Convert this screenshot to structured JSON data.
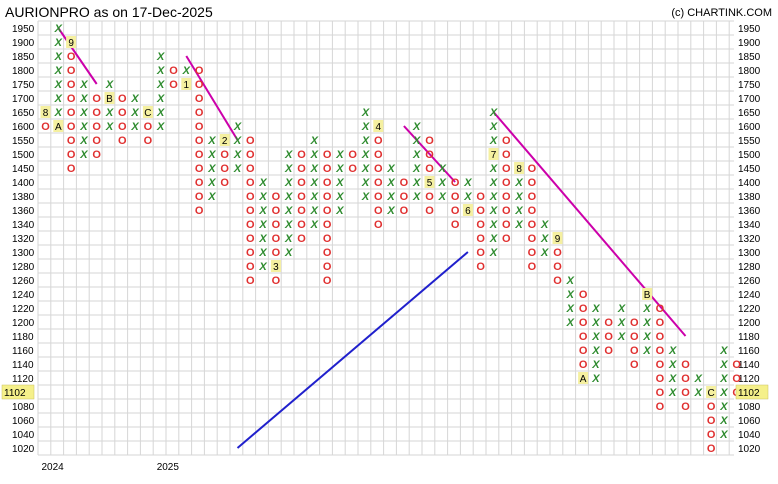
{
  "header": {
    "title": "AURIONPRO as on 17-Dec-2025",
    "credit": "(c) CHARTINK.COM"
  },
  "current_price": "1102",
  "chart_data": {
    "type": "point-and-figure",
    "title": "AURIONPRO as on 17-Dec-2025",
    "y_levels": [
      1020,
      1040,
      1060,
      1080,
      1100,
      1120,
      1140,
      1160,
      1180,
      1200,
      1220,
      1240,
      1260,
      1280,
      1300,
      1320,
      1340,
      1360,
      1380,
      1400,
      1450,
      1500,
      1550,
      1600,
      1650,
      1700,
      1750,
      1800,
      1850,
      1900,
      1950
    ],
    "y_tick_labels": [
      "1950",
      "1900",
      "1850",
      "1800",
      "1750",
      "1700",
      "1650",
      "1600",
      "1550",
      "1500",
      "1450",
      "1400",
      "1380",
      "1360",
      "1340",
      "1320",
      "1300",
      "1280",
      "1260",
      "1240",
      "1220",
      "1200",
      "1180",
      "1160",
      "1140",
      "1120",
      "1100",
      "1080",
      "1060",
      "1040",
      "1020"
    ],
    "x_axis_labels": [
      {
        "col": 0,
        "label": "2024"
      },
      {
        "col": 9,
        "label": "2025"
      }
    ],
    "columns": [
      {
        "type": "O",
        "from": 1600,
        "to": 1650,
        "marks": [
          {
            "level": 1650,
            "label": "8"
          }
        ]
      },
      {
        "type": "X",
        "from": 1600,
        "to": 1950,
        "marks": [
          {
            "level": 1600,
            "label": "A"
          }
        ]
      },
      {
        "type": "O",
        "from": 1450,
        "to": 1900,
        "marks": [
          {
            "level": 1900,
            "label": "9"
          }
        ]
      },
      {
        "type": "X",
        "from": 1500,
        "to": 1750
      },
      {
        "type": "O",
        "from": 1500,
        "to": 1700
      },
      {
        "type": "X",
        "from": 1600,
        "to": 1750,
        "marks": [
          {
            "level": 1700,
            "label": "B"
          }
        ]
      },
      {
        "type": "O",
        "from": 1550,
        "to": 1700
      },
      {
        "type": "X",
        "from": 1600,
        "to": 1700
      },
      {
        "type": "O",
        "from": 1550,
        "to": 1650,
        "marks": [
          {
            "level": 1650,
            "label": "C"
          }
        ]
      },
      {
        "type": "X",
        "from": 1600,
        "to": 1850
      },
      {
        "type": "O",
        "from": 1750,
        "to": 1800
      },
      {
        "type": "X",
        "from": 1750,
        "to": 1800,
        "marks": [
          {
            "level": 1750,
            "label": "1"
          }
        ]
      },
      {
        "type": "O",
        "from": 1360,
        "to": 1800
      },
      {
        "type": "X",
        "from": 1380,
        "to": 1550
      },
      {
        "type": "O",
        "from": 1400,
        "to": 1550,
        "marks": [
          {
            "level": 1550,
            "label": "2"
          }
        ]
      },
      {
        "type": "X",
        "from": 1450,
        "to": 1600
      },
      {
        "type": "O",
        "from": 1260,
        "to": 1550
      },
      {
        "type": "X",
        "from": 1280,
        "to": 1400
      },
      {
        "type": "O",
        "from": 1260,
        "to": 1380,
        "marks": [
          {
            "level": 1280,
            "label": "3"
          }
        ]
      },
      {
        "type": "X",
        "from": 1300,
        "to": 1500
      },
      {
        "type": "O",
        "from": 1320,
        "to": 1500
      },
      {
        "type": "X",
        "from": 1340,
        "to": 1550
      },
      {
        "type": "O",
        "from": 1260,
        "to": 1500
      },
      {
        "type": "X",
        "from": 1360,
        "to": 1500
      },
      {
        "type": "O",
        "from": 1450,
        "to": 1500
      },
      {
        "type": "X",
        "from": 1380,
        "to": 1650
      },
      {
        "type": "O",
        "from": 1340,
        "to": 1600,
        "marks": [
          {
            "level": 1600,
            "label": "4"
          }
        ]
      },
      {
        "type": "X",
        "from": 1360,
        "to": 1450
      },
      {
        "type": "O",
        "from": 1360,
        "to": 1400
      },
      {
        "type": "X",
        "from": 1380,
        "to": 1600
      },
      {
        "type": "O",
        "from": 1360,
        "to": 1550,
        "marks": [
          {
            "level": 1400,
            "label": "5"
          }
        ]
      },
      {
        "type": "X",
        "from": 1380,
        "to": 1450
      },
      {
        "type": "O",
        "from": 1340,
        "to": 1400
      },
      {
        "type": "X",
        "from": 1360,
        "to": 1400,
        "marks": [
          {
            "level": 1360,
            "label": "6"
          }
        ]
      },
      {
        "type": "O",
        "from": 1280,
        "to": 1380
      },
      {
        "type": "X",
        "from": 1300,
        "to": 1650,
        "marks": [
          {
            "level": 1500,
            "label": "7"
          }
        ]
      },
      {
        "type": "O",
        "from": 1320,
        "to": 1550
      },
      {
        "type": "X",
        "from": 1340,
        "to": 1450,
        "marks": [
          {
            "level": 1450,
            "label": "8"
          }
        ]
      },
      {
        "type": "O",
        "from": 1280,
        "to": 1450
      },
      {
        "type": "X",
        "from": 1300,
        "to": 1340
      },
      {
        "type": "O",
        "from": 1260,
        "to": 1320,
        "marks": [
          {
            "level": 1320,
            "label": "9"
          }
        ]
      },
      {
        "type": "X",
        "from": 1200,
        "to": 1260
      },
      {
        "type": "O",
        "from": 1120,
        "to": 1240,
        "marks": [
          {
            "level": 1120,
            "label": "A"
          }
        ]
      },
      {
        "type": "X",
        "from": 1120,
        "to": 1220
      },
      {
        "type": "O",
        "from": 1160,
        "to": 1200
      },
      {
        "type": "X",
        "from": 1180,
        "to": 1220
      },
      {
        "type": "O",
        "from": 1140,
        "to": 1200
      },
      {
        "type": "X",
        "from": 1160,
        "to": 1240,
        "marks": [
          {
            "level": 1240,
            "label": "B"
          }
        ]
      },
      {
        "type": "O",
        "from": 1080,
        "to": 1220
      },
      {
        "type": "X",
        "from": 1100,
        "to": 1160
      },
      {
        "type": "O",
        "from": 1080,
        "to": 1140
      },
      {
        "type": "X",
        "from": 1100,
        "to": 1120
      },
      {
        "type": "O",
        "from": 1020,
        "to": 1100,
        "marks": [
          {
            "level": 1100,
            "label": "C"
          }
        ]
      },
      {
        "type": "X",
        "from": 1040,
        "to": 1160
      },
      {
        "type": "O",
        "from": 1100,
        "to": 1140
      }
    ],
    "trend_lines": [
      {
        "color": "#cc00aa",
        "from": {
          "col": 1,
          "level": 1950
        },
        "to": {
          "col": 4,
          "level": 1750
        }
      },
      {
        "color": "#cc00aa",
        "from": {
          "col": 11,
          "level": 1850
        },
        "to": {
          "col": 15,
          "level": 1550
        }
      },
      {
        "color": "#cc00aa",
        "from": {
          "col": 28,
          "level": 1600
        },
        "to": {
          "col": 32,
          "level": 1400
        }
      },
      {
        "color": "#cc00aa",
        "from": {
          "col": 35,
          "level": 1650
        },
        "to": {
          "col": 50,
          "level": 1180
        }
      },
      {
        "color": "#2020cc",
        "from": {
          "col": 15,
          "level": 1020
        },
        "to": {
          "col": 33,
          "level": 1300
        }
      }
    ],
    "colors": {
      "x": "#2e8b2e",
      "o": "#e03030",
      "resistance": "#cc00aa",
      "support": "#2020cc"
    },
    "grid": true
  }
}
